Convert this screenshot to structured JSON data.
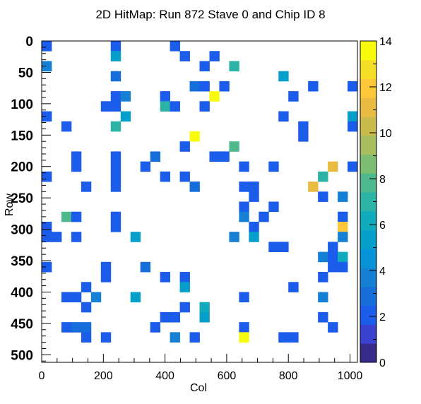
{
  "chart_data": {
    "type": "heatmap",
    "title": "2D HitMap: Run 872 Stave 0 and Chip ID 8",
    "xlabel": "Col",
    "ylabel": "Row",
    "xlim": [
      0,
      1024
    ],
    "ylim": [
      0,
      512
    ],
    "y_axis_inverted": true,
    "bin_width_x": 32,
    "bin_width_y": 16,
    "x_ticks": [
      "0",
      "200",
      "400",
      "600",
      "800",
      "1000"
    ],
    "y_ticks": [
      "0",
      "50",
      "100",
      "150",
      "200",
      "250",
      "300",
      "350",
      "400",
      "450",
      "500"
    ],
    "z_range": [
      0,
      14
    ],
    "z_ticks": [
      "0",
      "2",
      "4",
      "6",
      "8",
      "10",
      "12",
      "14"
    ],
    "palette": "kBird",
    "colorbar_colors": [
      "#352a87",
      "#3b42d0",
      "#1b5cea",
      "#156ed9",
      "#1580d4",
      "#0793d8",
      "#069fcc",
      "#11abbd",
      "#2db2a6",
      "#4eb98d",
      "#7dbd72",
      "#a6be5d",
      "#c9bb4c",
      "#e9bb43",
      "#fdc739",
      "#f7de26",
      "#f9fb0e"
    ],
    "cells": [
      {
        "x": 0,
        "y": 0,
        "value": 2
      },
      {
        "x": 224,
        "y": 0,
        "value": 2
      },
      {
        "x": 416,
        "y": 0,
        "value": 2
      },
      {
        "x": 224,
        "y": 16,
        "value": 5
      },
      {
        "x": 448,
        "y": 16,
        "value": 2
      },
      {
        "x": 544,
        "y": 16,
        "value": 2
      },
      {
        "x": 0,
        "y": 32,
        "value": 4
      },
      {
        "x": 512,
        "y": 32,
        "value": 2
      },
      {
        "x": 608,
        "y": 32,
        "value": 7
      },
      {
        "x": 224,
        "y": 48,
        "value": 3
      },
      {
        "x": 768,
        "y": 48,
        "value": 5
      },
      {
        "x": 480,
        "y": 64,
        "value": 3
      },
      {
        "x": 512,
        "y": 64,
        "value": 2
      },
      {
        "x": 576,
        "y": 64,
        "value": 2
      },
      {
        "x": 864,
        "y": 64,
        "value": 2
      },
      {
        "x": 992,
        "y": 64,
        "value": 2
      },
      {
        "x": 224,
        "y": 80,
        "value": 2
      },
      {
        "x": 256,
        "y": 80,
        "value": 4
      },
      {
        "x": 384,
        "y": 80,
        "value": 2
      },
      {
        "x": 544,
        "y": 80,
        "value": 14
      },
      {
        "x": 800,
        "y": 80,
        "value": 2
      },
      {
        "x": 192,
        "y": 96,
        "value": 2
      },
      {
        "x": 224,
        "y": 96,
        "value": 2
      },
      {
        "x": 384,
        "y": 96,
        "value": 7
      },
      {
        "x": 416,
        "y": 96,
        "value": 2
      },
      {
        "x": 512,
        "y": 96,
        "value": 2
      },
      {
        "x": 0,
        "y": 112,
        "value": 2
      },
      {
        "x": 256,
        "y": 112,
        "value": 5
      },
      {
        "x": 768,
        "y": 112,
        "value": 2
      },
      {
        "x": 992,
        "y": 112,
        "value": 5
      },
      {
        "x": 64,
        "y": 128,
        "value": 2
      },
      {
        "x": 224,
        "y": 128,
        "value": 7
      },
      {
        "x": 832,
        "y": 128,
        "value": 2
      },
      {
        "x": 992,
        "y": 128,
        "value": 2
      },
      {
        "x": 480,
        "y": 144,
        "value": 14
      },
      {
        "x": 832,
        "y": 144,
        "value": 2
      },
      {
        "x": 448,
        "y": 160,
        "value": 2
      },
      {
        "x": 608,
        "y": 160,
        "value": 8
      },
      {
        "x": 96,
        "y": 176,
        "value": 2
      },
      {
        "x": 224,
        "y": 176,
        "value": 2
      },
      {
        "x": 352,
        "y": 176,
        "value": 3
      },
      {
        "x": 544,
        "y": 176,
        "value": 2
      },
      {
        "x": 576,
        "y": 176,
        "value": 2
      },
      {
        "x": 96,
        "y": 192,
        "value": 2
      },
      {
        "x": 224,
        "y": 192,
        "value": 2
      },
      {
        "x": 320,
        "y": 192,
        "value": 2
      },
      {
        "x": 640,
        "y": 192,
        "value": 2
      },
      {
        "x": 736,
        "y": 192,
        "value": 2
      },
      {
        "x": 928,
        "y": 192,
        "value": 11
      },
      {
        "x": 992,
        "y": 192,
        "value": 2
      },
      {
        "x": 0,
        "y": 208,
        "value": 2
      },
      {
        "x": 224,
        "y": 208,
        "value": 2
      },
      {
        "x": 384,
        "y": 208,
        "value": 2
      },
      {
        "x": 448,
        "y": 208,
        "value": 2
      },
      {
        "x": 896,
        "y": 208,
        "value": 7
      },
      {
        "x": 128,
        "y": 224,
        "value": 2
      },
      {
        "x": 224,
        "y": 224,
        "value": 2
      },
      {
        "x": 480,
        "y": 224,
        "value": 3
      },
      {
        "x": 640,
        "y": 224,
        "value": 2
      },
      {
        "x": 672,
        "y": 224,
        "value": 2
      },
      {
        "x": 864,
        "y": 224,
        "value": 11
      },
      {
        "x": 672,
        "y": 240,
        "value": 2
      },
      {
        "x": 896,
        "y": 240,
        "value": 2
      },
      {
        "x": 960,
        "y": 240,
        "value": 4
      },
      {
        "x": 640,
        "y": 256,
        "value": 2
      },
      {
        "x": 736,
        "y": 256,
        "value": 2
      },
      {
        "x": 64,
        "y": 272,
        "value": 8
      },
      {
        "x": 96,
        "y": 272,
        "value": 2
      },
      {
        "x": 224,
        "y": 272,
        "value": 2
      },
      {
        "x": 640,
        "y": 272,
        "value": 4
      },
      {
        "x": 704,
        "y": 272,
        "value": 2
      },
      {
        "x": 960,
        "y": 272,
        "value": 2
      },
      {
        "x": 0,
        "y": 288,
        "value": 2
      },
      {
        "x": 224,
        "y": 288,
        "value": 2
      },
      {
        "x": 672,
        "y": 288,
        "value": 2
      },
      {
        "x": 960,
        "y": 288,
        "value": 12
      },
      {
        "x": 0,
        "y": 304,
        "value": 2
      },
      {
        "x": 32,
        "y": 304,
        "value": 2
      },
      {
        "x": 96,
        "y": 304,
        "value": 2
      },
      {
        "x": 288,
        "y": 304,
        "value": 5
      },
      {
        "x": 608,
        "y": 304,
        "value": 4
      },
      {
        "x": 672,
        "y": 304,
        "value": 5
      },
      {
        "x": 960,
        "y": 304,
        "value": 4
      },
      {
        "x": 736,
        "y": 320,
        "value": 2
      },
      {
        "x": 768,
        "y": 320,
        "value": 2
      },
      {
        "x": 928,
        "y": 320,
        "value": 2
      },
      {
        "x": 896,
        "y": 336,
        "value": 4
      },
      {
        "x": 928,
        "y": 336,
        "value": 2
      },
      {
        "x": 960,
        "y": 336,
        "value": 6
      },
      {
        "x": 0,
        "y": 352,
        "value": 2
      },
      {
        "x": 192,
        "y": 352,
        "value": 2
      },
      {
        "x": 320,
        "y": 352,
        "value": 3
      },
      {
        "x": 928,
        "y": 352,
        "value": 2
      },
      {
        "x": 960,
        "y": 352,
        "value": 2
      },
      {
        "x": 192,
        "y": 368,
        "value": 2
      },
      {
        "x": 384,
        "y": 368,
        "value": 2
      },
      {
        "x": 448,
        "y": 368,
        "value": 2
      },
      {
        "x": 896,
        "y": 368,
        "value": 2
      },
      {
        "x": 128,
        "y": 384,
        "value": 2
      },
      {
        "x": 448,
        "y": 384,
        "value": 5
      },
      {
        "x": 800,
        "y": 384,
        "value": 2
      },
      {
        "x": 64,
        "y": 400,
        "value": 2
      },
      {
        "x": 96,
        "y": 400,
        "value": 2
      },
      {
        "x": 160,
        "y": 400,
        "value": 4
      },
      {
        "x": 288,
        "y": 400,
        "value": 5
      },
      {
        "x": 640,
        "y": 400,
        "value": 2
      },
      {
        "x": 896,
        "y": 400,
        "value": 4
      },
      {
        "x": 128,
        "y": 416,
        "value": 2
      },
      {
        "x": 448,
        "y": 416,
        "value": 2
      },
      {
        "x": 512,
        "y": 416,
        "value": 6
      },
      {
        "x": 384,
        "y": 432,
        "value": 2
      },
      {
        "x": 416,
        "y": 432,
        "value": 2
      },
      {
        "x": 512,
        "y": 432,
        "value": 5
      },
      {
        "x": 896,
        "y": 432,
        "value": 2
      },
      {
        "x": 64,
        "y": 448,
        "value": 2
      },
      {
        "x": 96,
        "y": 448,
        "value": 3
      },
      {
        "x": 128,
        "y": 448,
        "value": 3
      },
      {
        "x": 352,
        "y": 448,
        "value": 2
      },
      {
        "x": 640,
        "y": 448,
        "value": 2
      },
      {
        "x": 928,
        "y": 448,
        "value": 2
      },
      {
        "x": 128,
        "y": 464,
        "value": 2
      },
      {
        "x": 192,
        "y": 464,
        "value": 2
      },
      {
        "x": 416,
        "y": 464,
        "value": 4
      },
      {
        "x": 480,
        "y": 464,
        "value": 2
      },
      {
        "x": 640,
        "y": 464,
        "value": 14
      },
      {
        "x": 768,
        "y": 464,
        "value": 2
      },
      {
        "x": 800,
        "y": 464,
        "value": 2
      }
    ]
  }
}
